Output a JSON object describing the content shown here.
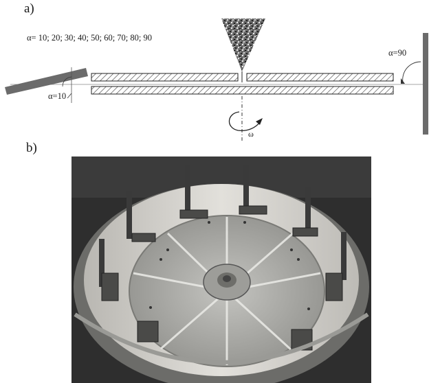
{
  "panel_a": {
    "label": "a)",
    "angle_list": "α= 10; 20; 30; 40; 50; 60; 70; 80; 90",
    "angle_left": "α=10",
    "angle_right": "α=90",
    "omega": "ω"
  },
  "panel_b": {
    "label": "b)"
  },
  "colors": {
    "plate": "#6b6b6b",
    "hatch_stroke": "#333333",
    "photo_dark": "#2e2e2e",
    "photo_wall": "#d9d7d2",
    "disc": "#a9a9a5"
  }
}
